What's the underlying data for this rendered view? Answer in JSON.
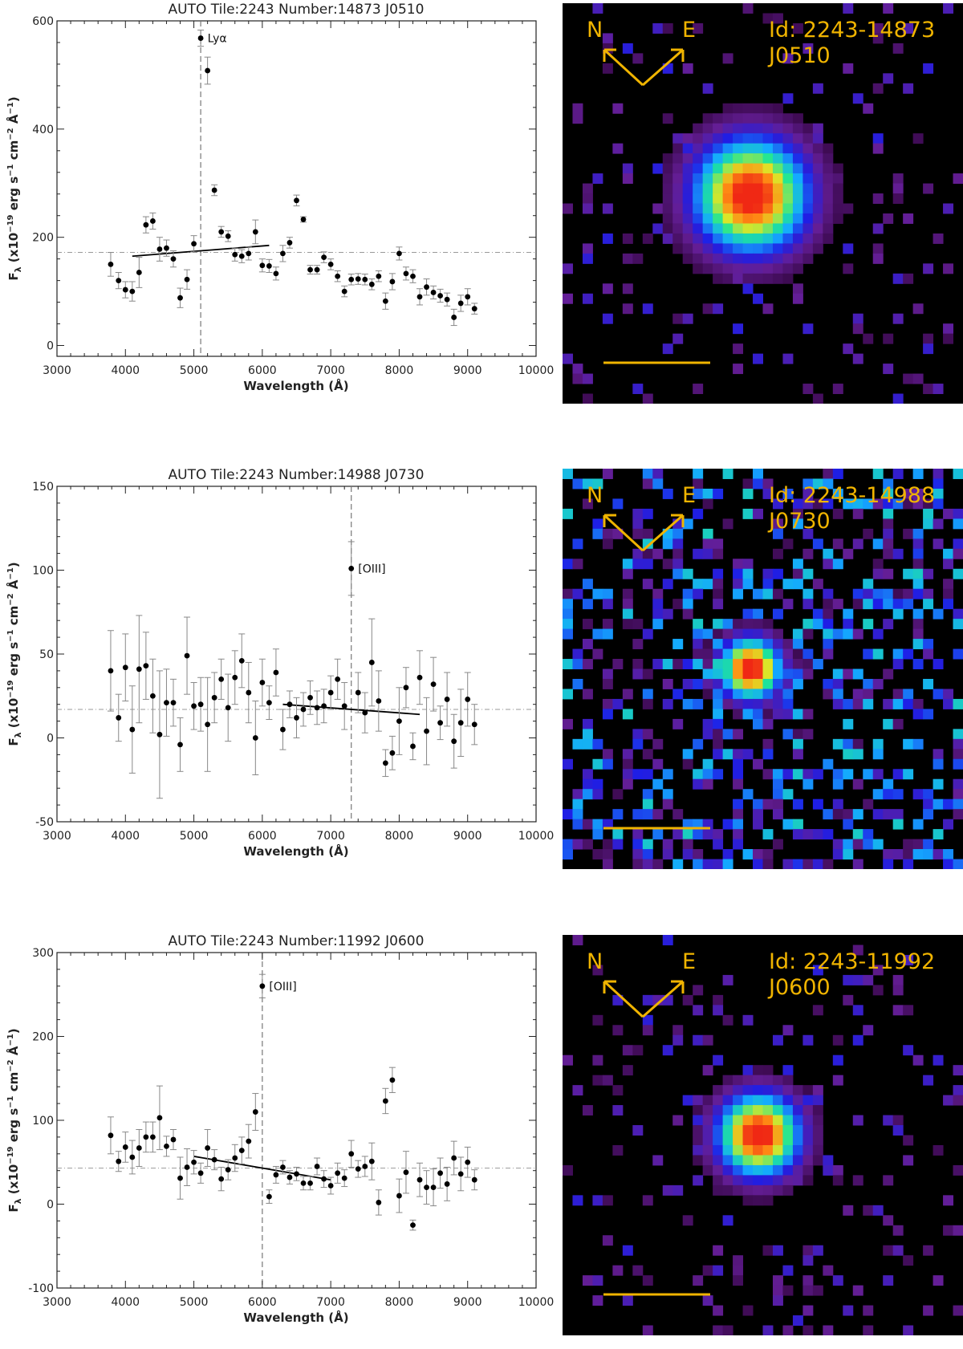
{
  "panels": [
    {
      "chart_data": {
        "type": "scatter",
        "title": "AUTO Tile:2243 Number:14873 J0510",
        "xlabel": "Wavelength (Å)",
        "ylabel": "F_λ (x10^-19 erg s^-1 cm^-2 Å^-1)",
        "xlim": [
          3000,
          10000
        ],
        "ylim": [
          -20,
          600
        ],
        "xticks": [
          3000,
          4000,
          5000,
          6000,
          7000,
          8000,
          9000,
          10000
        ],
        "yticks": [
          0,
          200,
          400,
          600
        ],
        "x": [
          3785,
          3900,
          4000,
          4100,
          4200,
          4300,
          4400,
          4500,
          4600,
          4700,
          4800,
          4900,
          5000,
          5100,
          5200,
          5300,
          5400,
          5500,
          5600,
          5700,
          5800,
          5900,
          6000,
          6100,
          6200,
          6300,
          6400,
          6500,
          6600,
          6700,
          6800,
          6900,
          7000,
          7100,
          7200,
          7300,
          7400,
          7500,
          7600,
          7700,
          7800,
          7900,
          8000,
          8100,
          8200,
          8300,
          8400,
          8500,
          8600,
          8700,
          8800,
          8900,
          9000,
          9100
        ],
        "y": [
          150,
          120,
          103,
          100,
          135,
          223,
          230,
          178,
          180,
          160,
          88,
          122,
          188,
          568,
          508,
          287,
          210,
          202,
          168,
          165,
          170,
          210,
          148,
          147,
          133,
          170,
          190,
          268,
          233,
          140,
          140,
          163,
          150,
          128,
          100,
          122,
          123,
          122,
          113,
          128,
          82,
          118,
          170,
          133,
          128,
          90,
          108,
          98,
          92,
          85,
          52,
          78,
          90,
          68
        ],
        "yerr": [
          22,
          15,
          15,
          18,
          28,
          15,
          15,
          22,
          15,
          15,
          18,
          18,
          15,
          15,
          25,
          10,
          10,
          10,
          12,
          12,
          12,
          22,
          12,
          12,
          12,
          15,
          10,
          10,
          5,
          8,
          8,
          10,
          10,
          10,
          10,
          10,
          10,
          10,
          10,
          10,
          15,
          15,
          12,
          12,
          12,
          15,
          15,
          12,
          12,
          12,
          15,
          15,
          15,
          10
        ],
        "continuum_line": {
          "x": [
            4100,
            6100
          ],
          "y": [
            165,
            185
          ]
        },
        "hline_y": 172,
        "vline_x": 5100,
        "line_label": "Lyα",
        "line_label_pos": {
          "x": 5200,
          "y": 568
        }
      },
      "image": {
        "id_label": "Id: 2243-14873",
        "filter_label": "J0510",
        "north_label": "N",
        "east_label": "E",
        "source_center": [
          0.47,
          0.48
        ],
        "source_size": 0.11,
        "noise_density": 0.1,
        "noise_color_level": 0.25,
        "noise_seed": 11
      }
    },
    {
      "chart_data": {
        "type": "scatter",
        "title": "AUTO Tile:2243 Number:14988 J0730",
        "xlabel": "Wavelength (Å)",
        "ylabel": "F_λ (x10^-19 erg s^-1 cm^-2 Å^-1)",
        "xlim": [
          3000,
          10000
        ],
        "ylim": [
          -50,
          150
        ],
        "xticks": [
          3000,
          4000,
          5000,
          6000,
          7000,
          8000,
          9000,
          10000
        ],
        "yticks": [
          -50,
          0,
          50,
          100,
          150
        ],
        "x": [
          3785,
          3900,
          4000,
          4100,
          4200,
          4300,
          4400,
          4500,
          4600,
          4700,
          4800,
          4900,
          5000,
          5100,
          5200,
          5300,
          5400,
          5500,
          5600,
          5700,
          5800,
          5900,
          6000,
          6100,
          6200,
          6300,
          6400,
          6500,
          6600,
          6700,
          6800,
          6900,
          7000,
          7100,
          7200,
          7300,
          7400,
          7500,
          7600,
          7700,
          7800,
          7900,
          8000,
          8100,
          8200,
          8300,
          8400,
          8500,
          8600,
          8700,
          8800,
          8900,
          9000,
          9100
        ],
        "y": [
          40,
          12,
          42,
          5,
          41,
          43,
          25,
          2,
          21,
          21,
          -4,
          49,
          19,
          20,
          8,
          24,
          35,
          18,
          36,
          46,
          27,
          0,
          33,
          21,
          39,
          5,
          20,
          12,
          17,
          24,
          18,
          19,
          27,
          35,
          19,
          101,
          27,
          15,
          45,
          22,
          -15,
          -9,
          10,
          30,
          -5,
          36,
          4,
          32,
          9,
          23,
          -2,
          9,
          23,
          8
        ],
        "yerr": [
          24,
          14,
          20,
          26,
          32,
          20,
          22,
          38,
          20,
          14,
          16,
          23,
          14,
          16,
          28,
          15,
          12,
          20,
          16,
          16,
          18,
          22,
          14,
          10,
          14,
          12,
          8,
          12,
          10,
          10,
          10,
          10,
          10,
          12,
          14,
          16,
          12,
          12,
          26,
          18,
          8,
          10,
          20,
          12,
          8,
          16,
          20,
          16,
          10,
          16,
          16,
          20,
          16,
          12
        ],
        "continuum_line": {
          "x": [
            6300,
            8300
          ],
          "y": [
            20,
            14
          ]
        },
        "hline_y": 17,
        "vline_x": 7300,
        "line_label": "[OIII]",
        "line_label_pos": {
          "x": 7400,
          "y": 101
        }
      },
      "image": {
        "id_label": "Id: 2243-14988",
        "filter_label": "J0730",
        "north_label": "N",
        "east_label": "E",
        "source_center": [
          0.47,
          0.5
        ],
        "source_size": 0.06,
        "noise_density": 0.38,
        "noise_color_level": 0.5,
        "noise_seed": 29
      }
    },
    {
      "chart_data": {
        "type": "scatter",
        "title": "AUTO Tile:2243 Number:11992 J0600",
        "xlabel": "Wavelength (Å)",
        "ylabel": "F_λ (x10^-19 erg s^-1 cm^-2 Å^-1)",
        "xlim": [
          3000,
          10000
        ],
        "ylim": [
          -100,
          300
        ],
        "xticks": [
          3000,
          4000,
          5000,
          6000,
          7000,
          8000,
          9000,
          10000
        ],
        "yticks": [
          -100,
          0,
          100,
          200,
          300
        ],
        "x": [
          3785,
          3900,
          4000,
          4100,
          4200,
          4300,
          4400,
          4500,
          4600,
          4700,
          4800,
          4900,
          5000,
          5100,
          5200,
          5300,
          5400,
          5500,
          5600,
          5700,
          5800,
          5900,
          6000,
          6100,
          6200,
          6300,
          6400,
          6500,
          6600,
          6700,
          6800,
          6900,
          7000,
          7100,
          7200,
          7300,
          7400,
          7500,
          7600,
          7700,
          7800,
          7900,
          8000,
          8100,
          8200,
          8300,
          8400,
          8500,
          8600,
          8700,
          8800,
          8900,
          9000,
          9100
        ],
        "y": [
          82,
          51,
          68,
          56,
          67,
          80,
          80,
          103,
          69,
          77,
          31,
          44,
          50,
          37,
          67,
          53,
          30,
          41,
          55,
          64,
          75,
          110,
          260,
          9,
          35,
          44,
          32,
          36,
          25,
          25,
          45,
          30,
          22,
          37,
          31,
          60,
          42,
          45,
          51,
          2,
          123,
          148,
          10,
          38,
          -25,
          29,
          20,
          20,
          37,
          24,
          55,
          36,
          50,
          29
        ],
        "yerr": [
          22,
          12,
          18,
          20,
          22,
          18,
          18,
          38,
          12,
          12,
          25,
          22,
          14,
          12,
          22,
          12,
          14,
          12,
          16,
          16,
          20,
          22,
          14,
          8,
          10,
          8,
          8,
          8,
          8,
          8,
          10,
          10,
          10,
          12,
          10,
          16,
          10,
          12,
          22,
          15,
          15,
          15,
          20,
          25,
          6,
          20,
          20,
          22,
          18,
          20,
          20,
          20,
          18,
          12
        ],
        "continuum_line": {
          "x": [
            5000,
            7000
          ],
          "y": [
            57,
            29
          ]
        },
        "hline_y": 43,
        "vline_x": 6000,
        "line_label": "[OIII]",
        "line_label_pos": {
          "x": 6100,
          "y": 260
        }
      },
      "image": {
        "id_label": "Id: 2243-11992",
        "filter_label": "J0600",
        "north_label": "N",
        "east_label": "E",
        "source_center": [
          0.49,
          0.5
        ],
        "source_size": 0.08,
        "noise_density": 0.12,
        "noise_color_level": 0.25,
        "noise_seed": 47
      }
    }
  ]
}
